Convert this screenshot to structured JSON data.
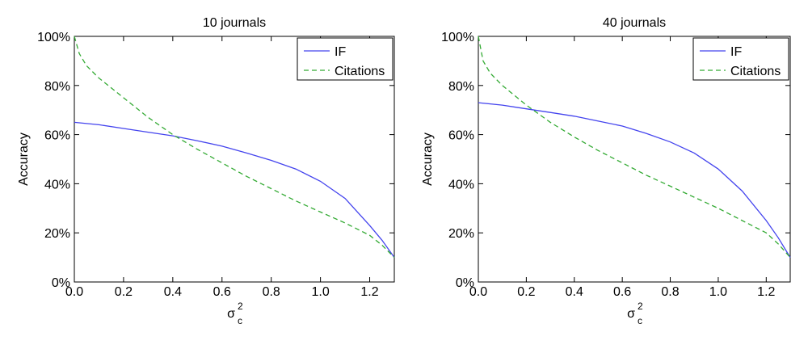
{
  "chart_data": [
    {
      "type": "line",
      "title": "10 journals",
      "xlabel": "σ",
      "xlabel_sup": "2",
      "xlabel_sub": "c",
      "ylabel": "Accuracy",
      "xlim": [
        0,
        1.3
      ],
      "ylim": [
        0,
        1.0
      ],
      "xticks": [
        0.0,
        0.2,
        0.4,
        0.6,
        0.8,
        1.0,
        1.2
      ],
      "xtick_labels": [
        "0.0",
        "0.2",
        "0.4",
        "0.6",
        "0.8",
        "1.0",
        "1.2"
      ],
      "yticks": [
        0,
        0.2,
        0.4,
        0.6,
        0.8,
        1.0
      ],
      "ytick_labels": [
        "0%",
        "20%",
        "40%",
        "60%",
        "80%",
        "100%"
      ],
      "grid": false,
      "legend": "top-right",
      "series": [
        {
          "name": "IF",
          "color": "#4444ee",
          "dash": "solid",
          "x": [
            0.0,
            0.1,
            0.2,
            0.3,
            0.4,
            0.5,
            0.6,
            0.7,
            0.8,
            0.9,
            1.0,
            1.1,
            1.2,
            1.25,
            1.3
          ],
          "y": [
            0.65,
            0.64,
            0.625,
            0.61,
            0.595,
            0.575,
            0.553,
            0.525,
            0.495,
            0.46,
            0.41,
            0.34,
            0.23,
            0.17,
            0.1
          ]
        },
        {
          "name": "Citations",
          "color": "#33aa33",
          "dash": "dashed",
          "x": [
            0.0,
            0.02,
            0.05,
            0.1,
            0.2,
            0.3,
            0.4,
            0.5,
            0.6,
            0.7,
            0.8,
            0.9,
            1.0,
            1.1,
            1.2,
            1.25,
            1.3
          ],
          "y": [
            1.0,
            0.93,
            0.88,
            0.83,
            0.75,
            0.67,
            0.6,
            0.54,
            0.485,
            0.43,
            0.38,
            0.33,
            0.285,
            0.24,
            0.19,
            0.15,
            0.1
          ]
        }
      ]
    },
    {
      "type": "line",
      "title": "40 journals",
      "xlabel": "σ",
      "xlabel_sup": "2",
      "xlabel_sub": "c",
      "ylabel": "Accuracy",
      "xlim": [
        0,
        1.3
      ],
      "ylim": [
        0,
        1.0
      ],
      "xticks": [
        0.0,
        0.2,
        0.4,
        0.6,
        0.8,
        1.0,
        1.2
      ],
      "xtick_labels": [
        "0.0",
        "0.2",
        "0.4",
        "0.6",
        "0.8",
        "1.0",
        "1.2"
      ],
      "yticks": [
        0,
        0.2,
        0.4,
        0.6,
        0.8,
        1.0
      ],
      "ytick_labels": [
        "0%",
        "20%",
        "40%",
        "60%",
        "80%",
        "100%"
      ],
      "grid": false,
      "legend": "top-right",
      "series": [
        {
          "name": "IF",
          "color": "#4444ee",
          "dash": "solid",
          "x": [
            0.0,
            0.1,
            0.2,
            0.3,
            0.4,
            0.5,
            0.6,
            0.7,
            0.8,
            0.9,
            1.0,
            1.1,
            1.2,
            1.25,
            1.3
          ],
          "y": [
            0.73,
            0.72,
            0.705,
            0.69,
            0.675,
            0.655,
            0.635,
            0.605,
            0.57,
            0.525,
            0.46,
            0.37,
            0.25,
            0.18,
            0.1
          ]
        },
        {
          "name": "Citations",
          "color": "#33aa33",
          "dash": "dashed",
          "x": [
            0.0,
            0.02,
            0.05,
            0.1,
            0.2,
            0.3,
            0.4,
            0.5,
            0.6,
            0.7,
            0.8,
            0.9,
            1.0,
            1.1,
            1.2,
            1.25,
            1.3
          ],
          "y": [
            1.0,
            0.9,
            0.85,
            0.8,
            0.72,
            0.65,
            0.59,
            0.535,
            0.485,
            0.435,
            0.39,
            0.345,
            0.3,
            0.25,
            0.2,
            0.155,
            0.1
          ]
        }
      ]
    }
  ]
}
